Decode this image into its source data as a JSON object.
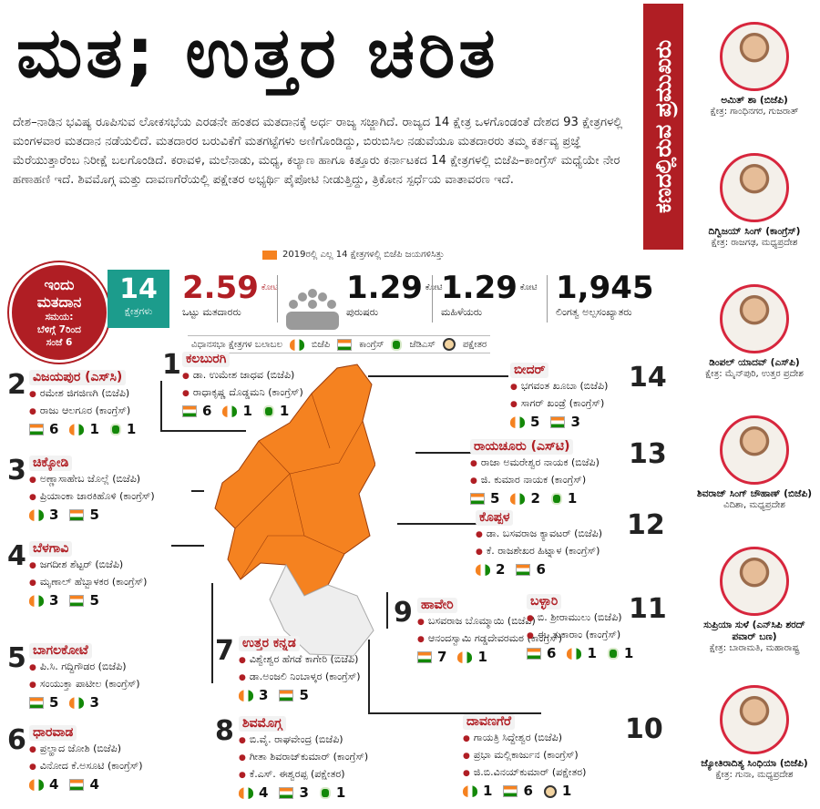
{
  "title": "ಮತ; ಉತ್ತರ ಚರಿತ",
  "intro": "ದೇಶ–ನಾಡಿನ ಭವಿಷ್ಯ ರೂಪಿಸುವ ಲೋಕಸಭೆಯ ಎರಡನೇ ಹಂತದ ಮತದಾನಕ್ಕೆ ಅರ್ಧ ರಾಜ್ಯ ಸಜ್ಜಾಗಿದೆ. ರಾಜ್ಯದ 14 ಕ್ಷೇತ್ರ ಒಳಗೊಂಡಂತೆ ದೇಶದ 93 ಕ್ಷೇತ್ರಗಳಲ್ಲಿ ಮಂಗಳವಾರ ಮತದಾನ ನಡೆಯಲಿದೆ. ಮತದಾರರ ಬರುವಿಕೆಗೆ ಮತಗಟ್ಟೆಗಳು ಅಣಿಗೊಂಡಿದ್ದು, ಬಿರುಬಿಸಿಲ ನಡುವೆಯೂ ಮತದಾರರು ತಮ್ಮ ಕರ್ತವ್ಯ ಪ್ರಜ್ಞೆ ಮೆರೆಯುತ್ತಾರೆಂಬ ನಿರೀಕ್ಷೆ ಬಲಗೊಂಡಿದೆ. ಕರಾವಳಿ, ಮಲೆನಾಡು, ಮಧ್ಯ, ಕಲ್ಯಾಣ ಹಾಗೂ ಕಿತ್ತೂರು ಕರ್ನಾಟಕದ 14 ಕ್ಷೇತ್ರಗಳಲ್ಲಿ ಬಿಜೆಪಿ–ಕಾಂಗ್ರೆಸ್ ಮಧ್ಯೆಯೇ ನೇರ ಹಣಾಹಣಿ ಇದೆ. ಶಿವಮೊಗ್ಗ ಮತ್ತು ದಾವಣಗೆರೆಯಲ್ಲಿ ಪಕ್ಷೇತರ ಅಭ್ಯರ್ಥಿ ಪೈಪೋಟಿ ನೀಡುತ್ತಿದ್ದು, ತ್ರಿಕೋನ ಸ್ಪರ್ಧೆಯ ವಾತಾವರಣ ಇದೆ.",
  "legend_note": "2019ರಲ್ಲಿ ಎಲ್ಲ 14 ಕ್ಷೇತ್ರಗಳಲ್ಲಿ ಬಿಜೆಪಿ ಜಯಗಳಿಸಿತ್ತು",
  "colors": {
    "accent": "#b01e24",
    "map": "#f58220",
    "teal": "#1c9c8c"
  },
  "badge": {
    "line1": "ಇಂದು",
    "line2": "ಮತದಾನ",
    "line3": "ಸಮಯ:",
    "line4": "ಬೆಳಿಗ್ಗೆ 7ರಿಂದ",
    "line5": "ಸಂಜೆ 6"
  },
  "stats": {
    "seats": {
      "value": "14",
      "label": "ಕ್ಷೇತ್ರಗಳು"
    },
    "voters": {
      "value": "2.59",
      "unit": "ಕೋಟಿ",
      "label": "ಒಟ್ಟು ಮತದಾರರು"
    },
    "men": {
      "value": "1.29",
      "unit": "ಕೋಟಿ",
      "label": "ಪುರುಷರು"
    },
    "women": {
      "value": "1.29",
      "unit": "ಕೋಟಿ",
      "label": "ಮಹಿಳೆಯರು"
    },
    "others": {
      "value": "1,945",
      "label": "ಲಿಂಗತ್ವ ಅಲ್ಪಸಂಖ್ಯಾತರು"
    }
  },
  "legend": {
    "assembly": "ವಿಧಾನಸಭಾ ಕ್ಷೇತ್ರಗಳ ಬಲಾಬಲ",
    "bjp": "ಬಿಜೆಪಿ",
    "inc": "ಕಾಂಗ್ರೆಸ್",
    "jds": "ಜೆಡಿಎಸ್",
    "ind": "ಪಕ್ಷೇತರ"
  },
  "sidebar_title": "ಕಣದಲ್ಲಿರುವ ಪ್ರಮುಖರು",
  "candidates": [
    {
      "name": "ಅಮಿತ್ ಶಾ (ಬಿಜೆಪಿ)",
      "constituency": "ಕ್ಷೇತ್ರ: ಗಾಂಧಿನಗರ, ಗುಜರಾತ್"
    },
    {
      "name": "ದಿಗ್ವಿಜಯ್ ಸಿಂಗ್ (ಕಾಂಗ್ರೆಸ್)",
      "constituency": "ಕ್ಷೇತ್ರ: ರಾಜಗಢ, ಮಧ್ಯಪ್ರದೇಶ"
    },
    {
      "name": "ಡಿಂಪಲ್ ಯಾದವ್ (ಎಸ್‌ಪಿ)",
      "constituency": "ಕ್ಷೇತ್ರ: ಮೈನ್‌ಪುರಿ, ಉತ್ತರ ಪ್ರದೇಶ"
    },
    {
      "name": "ಶಿವರಾಜ್ ಸಿಂಗ್ ಚೌಹಾಣ್ (ಬಿಜೆಪಿ)",
      "constituency": "ವಿದಿಶಾ, ಮಧ್ಯಪ್ರದೇಶ"
    },
    {
      "name": "ಸುಪ್ರಿಯಾ ಸುಳೆ (ಎನ್‌ಸಿಪಿ ಶರದ್ ಪವಾರ್ ಬಣ)",
      "constituency": "ಕ್ಷೇತ್ರ: ಬಾರಾಮತಿ, ಮಹಾರಾಷ್ಟ್ರ"
    },
    {
      "name": "ಜ್ಯೋತಿರಾದಿತ್ಯ ಸಿಂಧಿಯಾ (ಬಿಜೆಪಿ)",
      "constituency": "ಕ್ಷೇತ್ರ: ಗುನಾ, ಮಧ್ಯಪ್ರದೇಶ"
    }
  ],
  "seats": [
    {
      "num": "1",
      "name": "ಕಲಬುರಗಿ",
      "c1": "ಡಾ. ಉಮೇಶ ಜಾಧವ (ಬಿಜೆಪಿ)",
      "c2": "ರಾಧಾಕೃಷ್ಣ ದೊಡ್ಡಮನಿ (ಕಾಂಗ್ರೆಸ್)",
      "inc": "6",
      "bjp": "1",
      "jds": "1"
    },
    {
      "num": "2",
      "name": "ವಿಜಯಪುರ (ಎಸ್‌ಸಿ)",
      "c1": "ರಮೇಶ ಜಿಗಜಿಣಗಿ (ಬಿಜೆಪಿ)",
      "c2": "ರಾಜು ಆಲಗೂರ (ಕಾಂಗ್ರೆಸ್)",
      "inc": "6",
      "bjp": "1",
      "jds": "1"
    },
    {
      "num": "3",
      "name": "ಚಿಕ್ಕೋಡಿ",
      "c1": "ಅಣ್ಣಾಸಾಹೇಬ ಜೊಲ್ಲೆ (ಬಿಜೆಪಿ)",
      "c2": "ಪ್ರಿಯಾಂಕಾ ಜಾರಕಿಹೊಳಿ (ಕಾಂಗ್ರೆಸ್)",
      "bjp": "3",
      "inc": "5"
    },
    {
      "num": "4",
      "name": "ಬೆಳಗಾವಿ",
      "c1": "ಜಗದೀಶ ಶೆಟ್ಟರ್ (ಬಿಜೆಪಿ)",
      "c2": "ಮೃಣಾಲ್ ಹೆಬ್ಬಾಳಕರ (ಕಾಂಗ್ರೆಸ್)",
      "bjp": "3",
      "inc": "5"
    },
    {
      "num": "5",
      "name": "ಬಾಗಲಕೋಟೆ",
      "c1": "ಪಿ.ಸಿ. ಗದ್ದಿಗೌಡರ (ಬಿಜೆಪಿ)",
      "c2": "ಸಂಯುಕ್ತಾ ಪಾಟೀಲ (ಕಾಂಗ್ರೆಸ್)",
      "inc": "5",
      "bjp": "3"
    },
    {
      "num": "6",
      "name": "ಧಾರವಾಡ",
      "c1": "ಪ್ರಲ್ಹಾದ ಜೋಶಿ (ಬಿಜೆಪಿ)",
      "c2": "ವಿನೋದ ಕೆ.ಅಸೂಟಿ (ಕಾಂಗ್ರೆಸ್)",
      "bjp": "4",
      "inc": "4"
    },
    {
      "num": "7",
      "name": "ಉತ್ತರ ಕನ್ನಡ",
      "c1": "ವಿಶ್ವೇಶ್ವರ ಹೆಗಡೆ ಕಾಗೇರಿ (ಬಿಜೆಪಿ)",
      "c2": "ಡಾ.ಅಂಜಲಿ ನಿಂಬಾಳ್ಕರ (ಕಾಂಗ್ರೆಸ್)",
      "bjp": "3",
      "inc": "5"
    },
    {
      "num": "8",
      "name": "ಶಿವಮೊಗ್ಗ",
      "c1": "ಬಿ.ವೈ. ರಾಘವೇಂದ್ರ (ಬಿಜೆಪಿ)",
      "c2": "ಗೀತಾ ಶಿವರಾಜ್‌ಕುಮಾರ್ (ಕಾಂಗ್ರೆಸ್)",
      "c3": "ಕೆ.ಎಸ್. ಈಶ್ವರಪ್ಪ (ಪಕ್ಷೇತರ)",
      "bjp": "4",
      "inc": "3",
      "jds": "1"
    },
    {
      "num": "9",
      "name": "ಹಾವೇರಿ",
      "c1": "ಬಸವರಾಜ ಬೊಮ್ಮಾಯಿ (ಬಿಜೆಪಿ)",
      "c2": "ಆನಂದಸ್ವಾಮಿ ಗಡ್ಡದೇವರಮಠ (ಕಾಂಗ್ರೆಸ್)",
      "inc": "7",
      "bjp": "1"
    },
    {
      "num": "10",
      "name": "ದಾವಣಗೆರೆ",
      "c1": "ಗಾಯತ್ರಿ ಸಿದ್ದೇಶ್ವರ (ಬಿಜೆಪಿ)",
      "c2": "ಪ್ರಭಾ ಮಲ್ಲಿಕಾರ್ಜುನ (ಕಾಂಗ್ರೆಸ್)",
      "c3": "ಜಿ.ಬಿ.ವಿನಯ್‌ಕುಮಾರ್ (ಪಕ್ಷೇತರ)",
      "bjp": "1",
      "inc": "6",
      "ind": "1"
    },
    {
      "num": "11",
      "name": "ಬಳ್ಳಾರಿ",
      "c1": "ಬಿ. ಶ್ರೀರಾಮುಲು (ಬಿಜೆಪಿ)",
      "c2": "ಈ. ತುಕಾರಾಂ (ಕಾಂಗ್ರೆಸ್)",
      "inc": "6",
      "bjp": "1",
      "jds": "1"
    },
    {
      "num": "12",
      "name": "ಕೊಪ್ಪಳ",
      "c1": "ಡಾ. ಬಸವರಾಜ ಕ್ಯಾವಟರ್ (ಬಿಜೆಪಿ)",
      "c2": "ಕೆ. ರಾಜಶೇಖರ ಹಿಟ್ನಾಳ (ಕಾಂಗ್ರೆಸ್)",
      "bjp": "2",
      "inc": "6"
    },
    {
      "num": "13",
      "name": "ರಾಯಚೂರು (ಎಸ್‌ಟಿ)",
      "c1": "ರಾಜಾ ಅಮರೇಶ್ವರ ನಾಯಕ (ಬಿಜೆಪಿ)",
      "c2": "ಜಿ. ಕುಮಾರ ನಾಯಕ (ಕಾಂಗ್ರೆಸ್)",
      "inc": "5",
      "bjp": "2",
      "jds": "1"
    },
    {
      "num": "14",
      "name": "ಬೀದರ್",
      "c1": "ಭಗವಂತ ಖೂಬಾ (ಬಿಜೆಪಿ)",
      "c2": "ಸಾಗರ್ ಖಂಡ್ರೆ (ಕಾಂಗ್ರೆಸ್)",
      "bjp": "5",
      "inc": "3"
    }
  ]
}
